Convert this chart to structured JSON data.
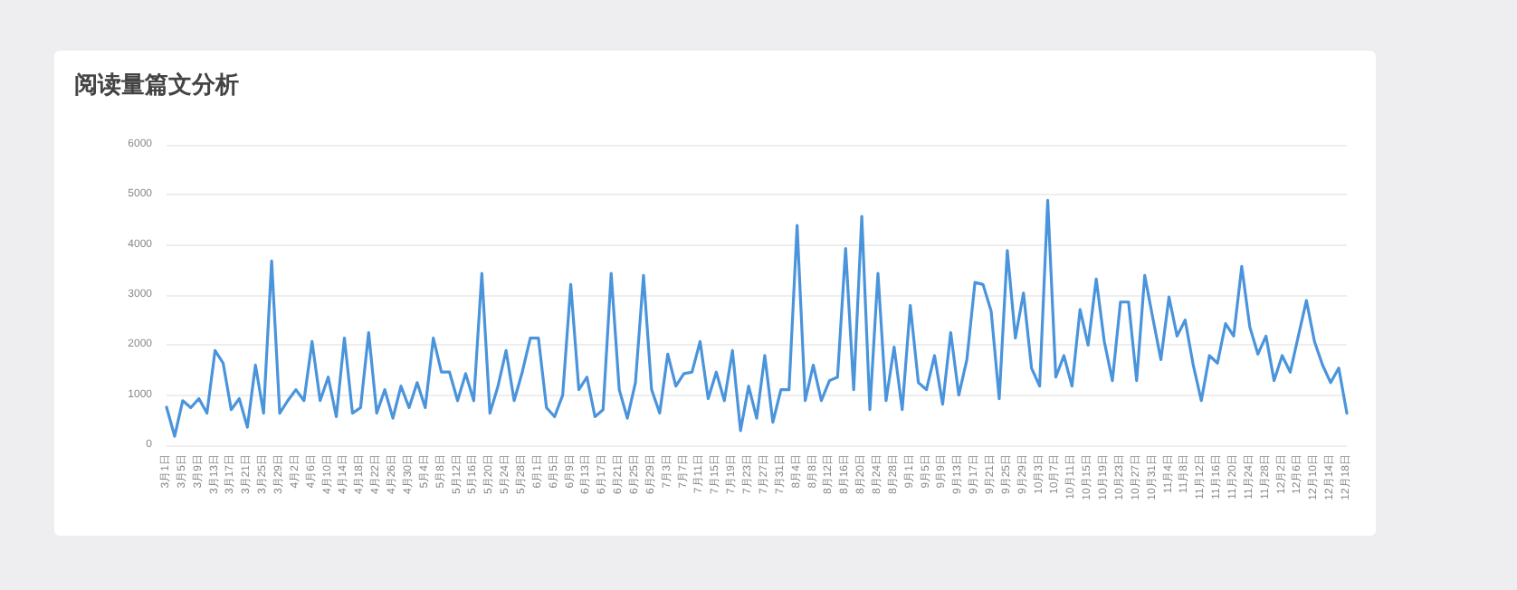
{
  "chart_data": {
    "type": "line",
    "title": "阅读量篇文分析",
    "categories": [
      "3月1日",
      null,
      "3月5日",
      null,
      "3月9日",
      null,
      "3月13日",
      null,
      "3月17日",
      null,
      "3月21日",
      null,
      "3月25日",
      null,
      "3月29日",
      null,
      "4月2日",
      null,
      "4月6日",
      null,
      "4月10日",
      null,
      "4月14日",
      null,
      "4月18日",
      null,
      "4月22日",
      null,
      "4月26日",
      null,
      "4月30日",
      null,
      "5月4日",
      null,
      "5月8日",
      null,
      "5月12日",
      null,
      "5月16日",
      null,
      "5月20日",
      null,
      "5月24日",
      null,
      "5月28日",
      null,
      "6月1日",
      null,
      "6月5日",
      null,
      "6月9日",
      null,
      "6月13日",
      null,
      "6月17日",
      null,
      "6月21日",
      null,
      "6月25日",
      null,
      "6月29日",
      null,
      "7月3日",
      null,
      "7月7日",
      null,
      "7月11日",
      null,
      "7月15日",
      null,
      "7月19日",
      null,
      "7月23日",
      null,
      "7月27日",
      null,
      "7月31日",
      null,
      "8月4日",
      null,
      "8月8日",
      null,
      "8月12日",
      null,
      "8月16日",
      null,
      "8月20日",
      null,
      "8月24日",
      null,
      "8月28日",
      null,
      "9月1日",
      null,
      "9月5日",
      null,
      "9月9日",
      null,
      "9月13日",
      null,
      "9月17日",
      null,
      "9月21日",
      null,
      "9月25日",
      null,
      "9月29日",
      null,
      "10月3日",
      null,
      "10月7日",
      null,
      "10月11日",
      null,
      "10月15日",
      null,
      "10月19日",
      null,
      "10月23日",
      null,
      "10月27日",
      null,
      "10月31日",
      null,
      "11月4日",
      null,
      "11月8日",
      null,
      "11月12日",
      null,
      "11月16日",
      null,
      "11月20日",
      null,
      "11月24日",
      null,
      "11月28日",
      null,
      "12月2日",
      null,
      "12月6日",
      null,
      "12月10日",
      null,
      "12月14日",
      null,
      "12月18日"
    ],
    "series": [
      {
        "color": "#4a94dc",
        "values": [
          760,
          180,
          890,
          750,
          930,
          640,
          1890,
          1640,
          710,
          930,
          360,
          1600,
          640,
          3680,
          640,
          890,
          1110,
          890,
          2070,
          890,
          1360,
          570,
          2140,
          640,
          750,
          2250,
          640,
          1110,
          540,
          1180,
          750,
          1250,
          750,
          2140,
          1460,
          1460,
          890,
          1430,
          890,
          3430,
          640,
          1180,
          1890,
          890,
          1460,
          2140,
          2140,
          750,
          570,
          1000,
          3210,
          1110,
          1360,
          570,
          710,
          3430,
          1110,
          540,
          1250,
          3390,
          1110,
          640,
          1820,
          1180,
          1430,
          1460,
          2070,
          930,
          1460,
          890,
          1890,
          290,
          1180,
          540,
          1790,
          460,
          1110,
          1110,
          4390,
          890,
          1600,
          890,
          1290,
          1360,
          3930,
          1110,
          4570,
          710,
          3430,
          890,
          1960,
          710,
          2790,
          1250,
          1110,
          1790,
          820,
          2250,
          1000,
          1710,
          3250,
          3210,
          2680,
          930,
          3890,
          2140,
          3040,
          1540,
          1180,
          4890,
          1360,
          1790,
          1180,
          2710,
          2000,
          3320,
          2070,
          1290,
          2860,
          2860,
          1290,
          3390,
          2540,
          1710,
          2960,
          2180,
          2500,
          1600,
          890,
          1790,
          1640,
          2430,
          2180,
          3570,
          2360,
          1820,
          2180,
          1290,
          1790,
          1460,
          2180,
          2890,
          2070,
          1600,
          1250,
          1540,
          640
        ]
      }
    ],
    "ylim": [
      0,
      6000
    ],
    "yticks": [
      0,
      1000,
      2000,
      3000,
      4000,
      5000,
      6000
    ],
    "grid": "y",
    "marker": "none",
    "line_style": "solid"
  }
}
